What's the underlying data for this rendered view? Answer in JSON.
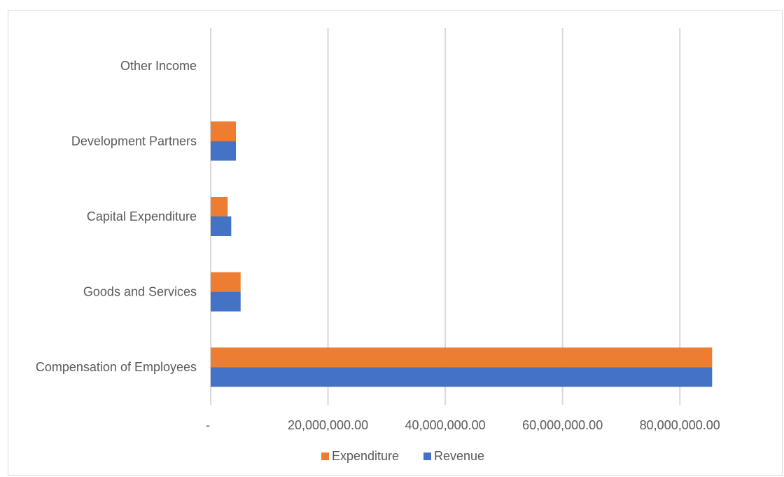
{
  "chart_data": {
    "type": "bar",
    "orientation": "horizontal",
    "categories": [
      "Compensation of Employees",
      "Goods and Services",
      "Capital Expenditure",
      "Development Partners",
      "Other Income"
    ],
    "series": [
      {
        "name": "Expenditure",
        "color": "#ED7D31",
        "values": [
          85500000,
          5100000,
          2900000,
          4300000,
          0
        ]
      },
      {
        "name": "Revenue",
        "color": "#4472C4",
        "values": [
          85500000,
          5100000,
          3500000,
          4300000,
          0
        ]
      }
    ],
    "xlim": [
      0,
      90000000
    ],
    "x_ticks": [
      0,
      20000000,
      40000000,
      60000000,
      80000000
    ],
    "x_tick_labels": [
      "-",
      "20,000,000.00",
      "40,000,000.00",
      "60,000,000.00",
      "80,000,000.00"
    ],
    "grid": true,
    "legend_position": "bottom"
  }
}
